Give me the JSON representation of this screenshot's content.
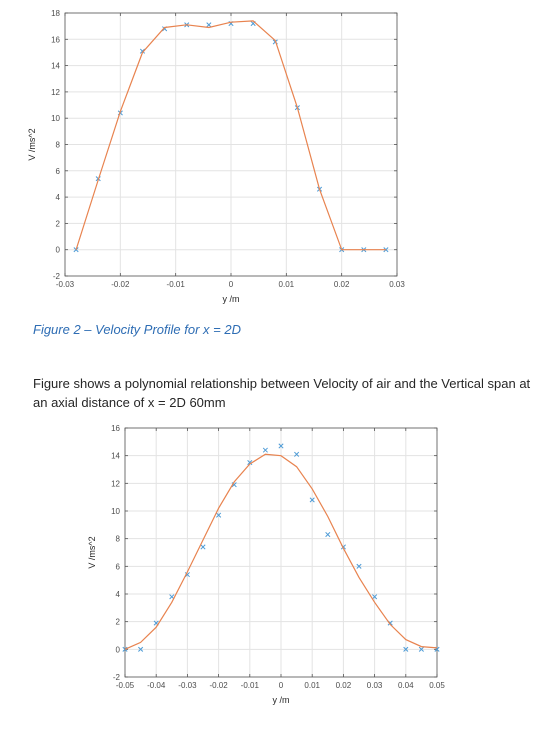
{
  "chart_data": [
    {
      "type": "line",
      "xlabel": "y /m",
      "ylabel": "V /ms^2",
      "xlim": [
        -0.03,
        0.03
      ],
      "ylim": [
        -2,
        18
      ],
      "xticks": [
        -0.03,
        -0.02,
        -0.01,
        0,
        0.01,
        0.02,
        0.03
      ],
      "xtick_labels": [
        "-0.03",
        "-0.02",
        "-0.01",
        "0",
        "0.01",
        "0.02",
        "0.03"
      ],
      "yticks": [
        -2,
        0,
        2,
        4,
        6,
        8,
        10,
        12,
        14,
        16,
        18
      ],
      "ytick_labels": [
        "-2",
        "0",
        "2",
        "4",
        "6",
        "8",
        "10",
        "12",
        "14",
        "16",
        "18"
      ],
      "grid": true,
      "series": [
        {
          "style": "markers-x",
          "color": "#4d9bd6",
          "x": [
            -0.028,
            -0.024,
            -0.02,
            -0.016,
            -0.012,
            -0.008,
            -0.004,
            0.0,
            0.004,
            0.008,
            0.012,
            0.016,
            0.02,
            0.024,
            0.028
          ],
          "y": [
            0.0,
            5.4,
            10.4,
            15.1,
            16.8,
            17.1,
            17.1,
            17.2,
            17.2,
            15.8,
            10.8,
            4.6,
            0.0,
            0.0,
            0.0
          ]
        },
        {
          "style": "line",
          "color": "#e8834f",
          "x": [
            -0.028,
            -0.024,
            -0.02,
            -0.016,
            -0.012,
            -0.008,
            -0.004,
            0.0,
            0.004,
            0.008,
            0.012,
            0.016,
            0.02,
            0.024,
            0.028
          ],
          "y": [
            0.0,
            5.3,
            10.5,
            15.0,
            16.9,
            17.1,
            16.9,
            17.3,
            17.4,
            15.9,
            10.8,
            4.6,
            0.0,
            0.0,
            0.0
          ]
        }
      ]
    },
    {
      "type": "line",
      "xlabel": "y /m",
      "ylabel": "V /ms^2",
      "xlim": [
        -0.05,
        0.05
      ],
      "ylim": [
        -2,
        16
      ],
      "xticks": [
        -0.05,
        -0.04,
        -0.03,
        -0.02,
        -0.01,
        0,
        0.01,
        0.02,
        0.03,
        0.04,
        0.05
      ],
      "xtick_labels": [
        "-0.05",
        "-0.04",
        "-0.03",
        "-0.02",
        "-0.01",
        "0",
        "0.01",
        "0.02",
        "0.03",
        "0.04",
        "0.05"
      ],
      "yticks": [
        -2,
        0,
        2,
        4,
        6,
        8,
        10,
        12,
        14,
        16
      ],
      "ytick_labels": [
        "-2",
        "0",
        "2",
        "4",
        "6",
        "8",
        "10",
        "12",
        "14",
        "16"
      ],
      "grid": true,
      "series": [
        {
          "style": "markers-x",
          "color": "#4d9bd6",
          "x": [
            -0.05,
            -0.045,
            -0.04,
            -0.035,
            -0.03,
            -0.025,
            -0.02,
            -0.015,
            -0.01,
            -0.005,
            0.0,
            0.005,
            0.01,
            0.015,
            0.02,
            0.025,
            0.03,
            0.035,
            0.04,
            0.045,
            0.05
          ],
          "y": [
            0.0,
            0.0,
            1.9,
            3.8,
            5.4,
            7.4,
            9.7,
            11.9,
            13.5,
            14.4,
            14.7,
            14.1,
            10.8,
            8.3,
            7.4,
            6.0,
            3.8,
            1.9,
            0.0,
            0.0,
            0.0
          ]
        },
        {
          "style": "line",
          "color": "#e8834f",
          "x": [
            -0.05,
            -0.045,
            -0.04,
            -0.035,
            -0.03,
            -0.025,
            -0.02,
            -0.015,
            -0.01,
            -0.005,
            0.0,
            0.005,
            0.01,
            0.015,
            0.02,
            0.025,
            0.03,
            0.035,
            0.04,
            0.045,
            0.05
          ],
          "y": [
            0.0,
            0.5,
            1.6,
            3.4,
            5.6,
            7.9,
            10.2,
            12.1,
            13.4,
            14.1,
            14.0,
            13.2,
            11.6,
            9.6,
            7.3,
            5.2,
            3.4,
            1.8,
            0.7,
            0.2,
            0.1
          ]
        }
      ]
    }
  ],
  "caption": "Figure 2 – Velocity Profile for x = 2D",
  "paragraph": "Figure shows a polynomial relationship between Velocity of air and the Vertical span at an axial distance of x = 2D 60mm"
}
